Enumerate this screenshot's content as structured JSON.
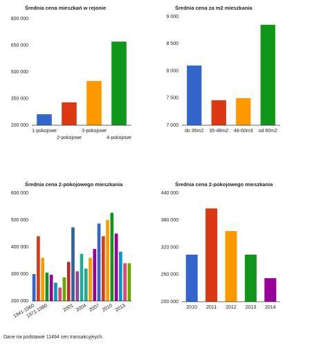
{
  "chart_data": [
    {
      "type": "bar",
      "title": "Średnia cena mieszkań w rejonie",
      "categories": [
        "1-pokojowe",
        "2-pokojowe",
        "3-pokojowe",
        "4-pokojowe"
      ],
      "values": [
        262000,
        329000,
        449000,
        671000
      ],
      "colors": [
        "#3366cc",
        "#dc3912",
        "#ff9900",
        "#109618"
      ],
      "ylim": [
        200000,
        800000
      ],
      "yticks": [
        {
          "value": 200000,
          "label": "200 000"
        },
        {
          "value": 350000,
          "label": "350 000"
        },
        {
          "value": 500000,
          "label": "500 000"
        },
        {
          "value": 650000,
          "label": "650 000"
        },
        {
          "value": 800000,
          "label": "800 000"
        }
      ]
    },
    {
      "type": "bar",
      "title": "Średnia cena za m2 mieszkania",
      "categories": [
        "do 35m2",
        "35-48m2",
        "48-60m3",
        "od 60m2"
      ],
      "values": [
        8100,
        7460,
        7500,
        8850
      ],
      "colors": [
        "#3366cc",
        "#dc3912",
        "#ff9900",
        "#109618"
      ],
      "ylim": [
        7000,
        9000
      ],
      "yticks": [
        {
          "value": 7000,
          "label": "7 000"
        },
        {
          "value": 7500,
          "label": "7 500"
        },
        {
          "value": 8000,
          "label": "8 000"
        },
        {
          "value": 8500,
          "label": "8 500"
        },
        {
          "value": 9000,
          "label": "9 000"
        }
      ]
    },
    {
      "type": "bar",
      "title": "Średnia cena 2-pokojowego mieszkania",
      "categories": [
        "1941-1960",
        null,
        null,
        "1971-1980",
        null,
        null,
        null,
        null,
        null,
        "2001",
        null,
        null,
        "2004",
        null,
        null,
        "2007",
        null,
        null,
        "2010",
        null,
        null,
        "2013",
        null
      ],
      "values": [
        300000,
        440000,
        360000,
        305000,
        297000,
        268000,
        250000,
        288000,
        345000,
        473000,
        310000,
        375000,
        320000,
        360000,
        393000,
        487000,
        440000,
        500000,
        527000,
        450000,
        383000,
        340000,
        340000
      ],
      "colors": [
        "#3366cc",
        "#dc3912",
        "#ff9900",
        "#109618",
        "#990099",
        "#0099c6",
        "#dd4477",
        "#66aa00",
        "#b82e2e",
        "#316395",
        "#994499",
        "#22aa99",
        "#22aa99",
        "#ff9900",
        "#990099",
        "#3366cc",
        "#dc3912",
        "#ff9900",
        "#109618",
        "#990099",
        "#0099c6",
        "#dd4477",
        "#66aa00"
      ],
      "ylim": [
        200000,
        600000
      ],
      "yticks": [
        {
          "value": 200000,
          "label": "200 000"
        },
        {
          "value": 300000,
          "label": "300 000"
        },
        {
          "value": 400000,
          "label": "400 000"
        },
        {
          "value": 500000,
          "label": "500 000"
        },
        {
          "value": 600000,
          "label": "600 000"
        }
      ]
    },
    {
      "type": "bar",
      "title": "Średnia cena 2-pokojowego mieszkania",
      "categories": [
        "2010",
        "2011",
        "2012",
        "2013",
        "2014"
      ],
      "values": [
        304000,
        406000,
        356000,
        304000,
        252000
      ],
      "colors": [
        "#3366cc",
        "#dc3912",
        "#ff9900",
        "#109618",
        "#990099"
      ],
      "ylim": [
        200000,
        440000
      ],
      "yticks": [
        {
          "value": 200000,
          "label": "200 000"
        },
        {
          "value": 260000,
          "label": "260 000"
        },
        {
          "value": 320000,
          "label": "320 000"
        },
        {
          "value": 380000,
          "label": "380 000"
        },
        {
          "value": 440000,
          "label": "440 000"
        }
      ]
    }
  ],
  "footer": "Dane na podstawie 11494 cen transakcyjnych."
}
